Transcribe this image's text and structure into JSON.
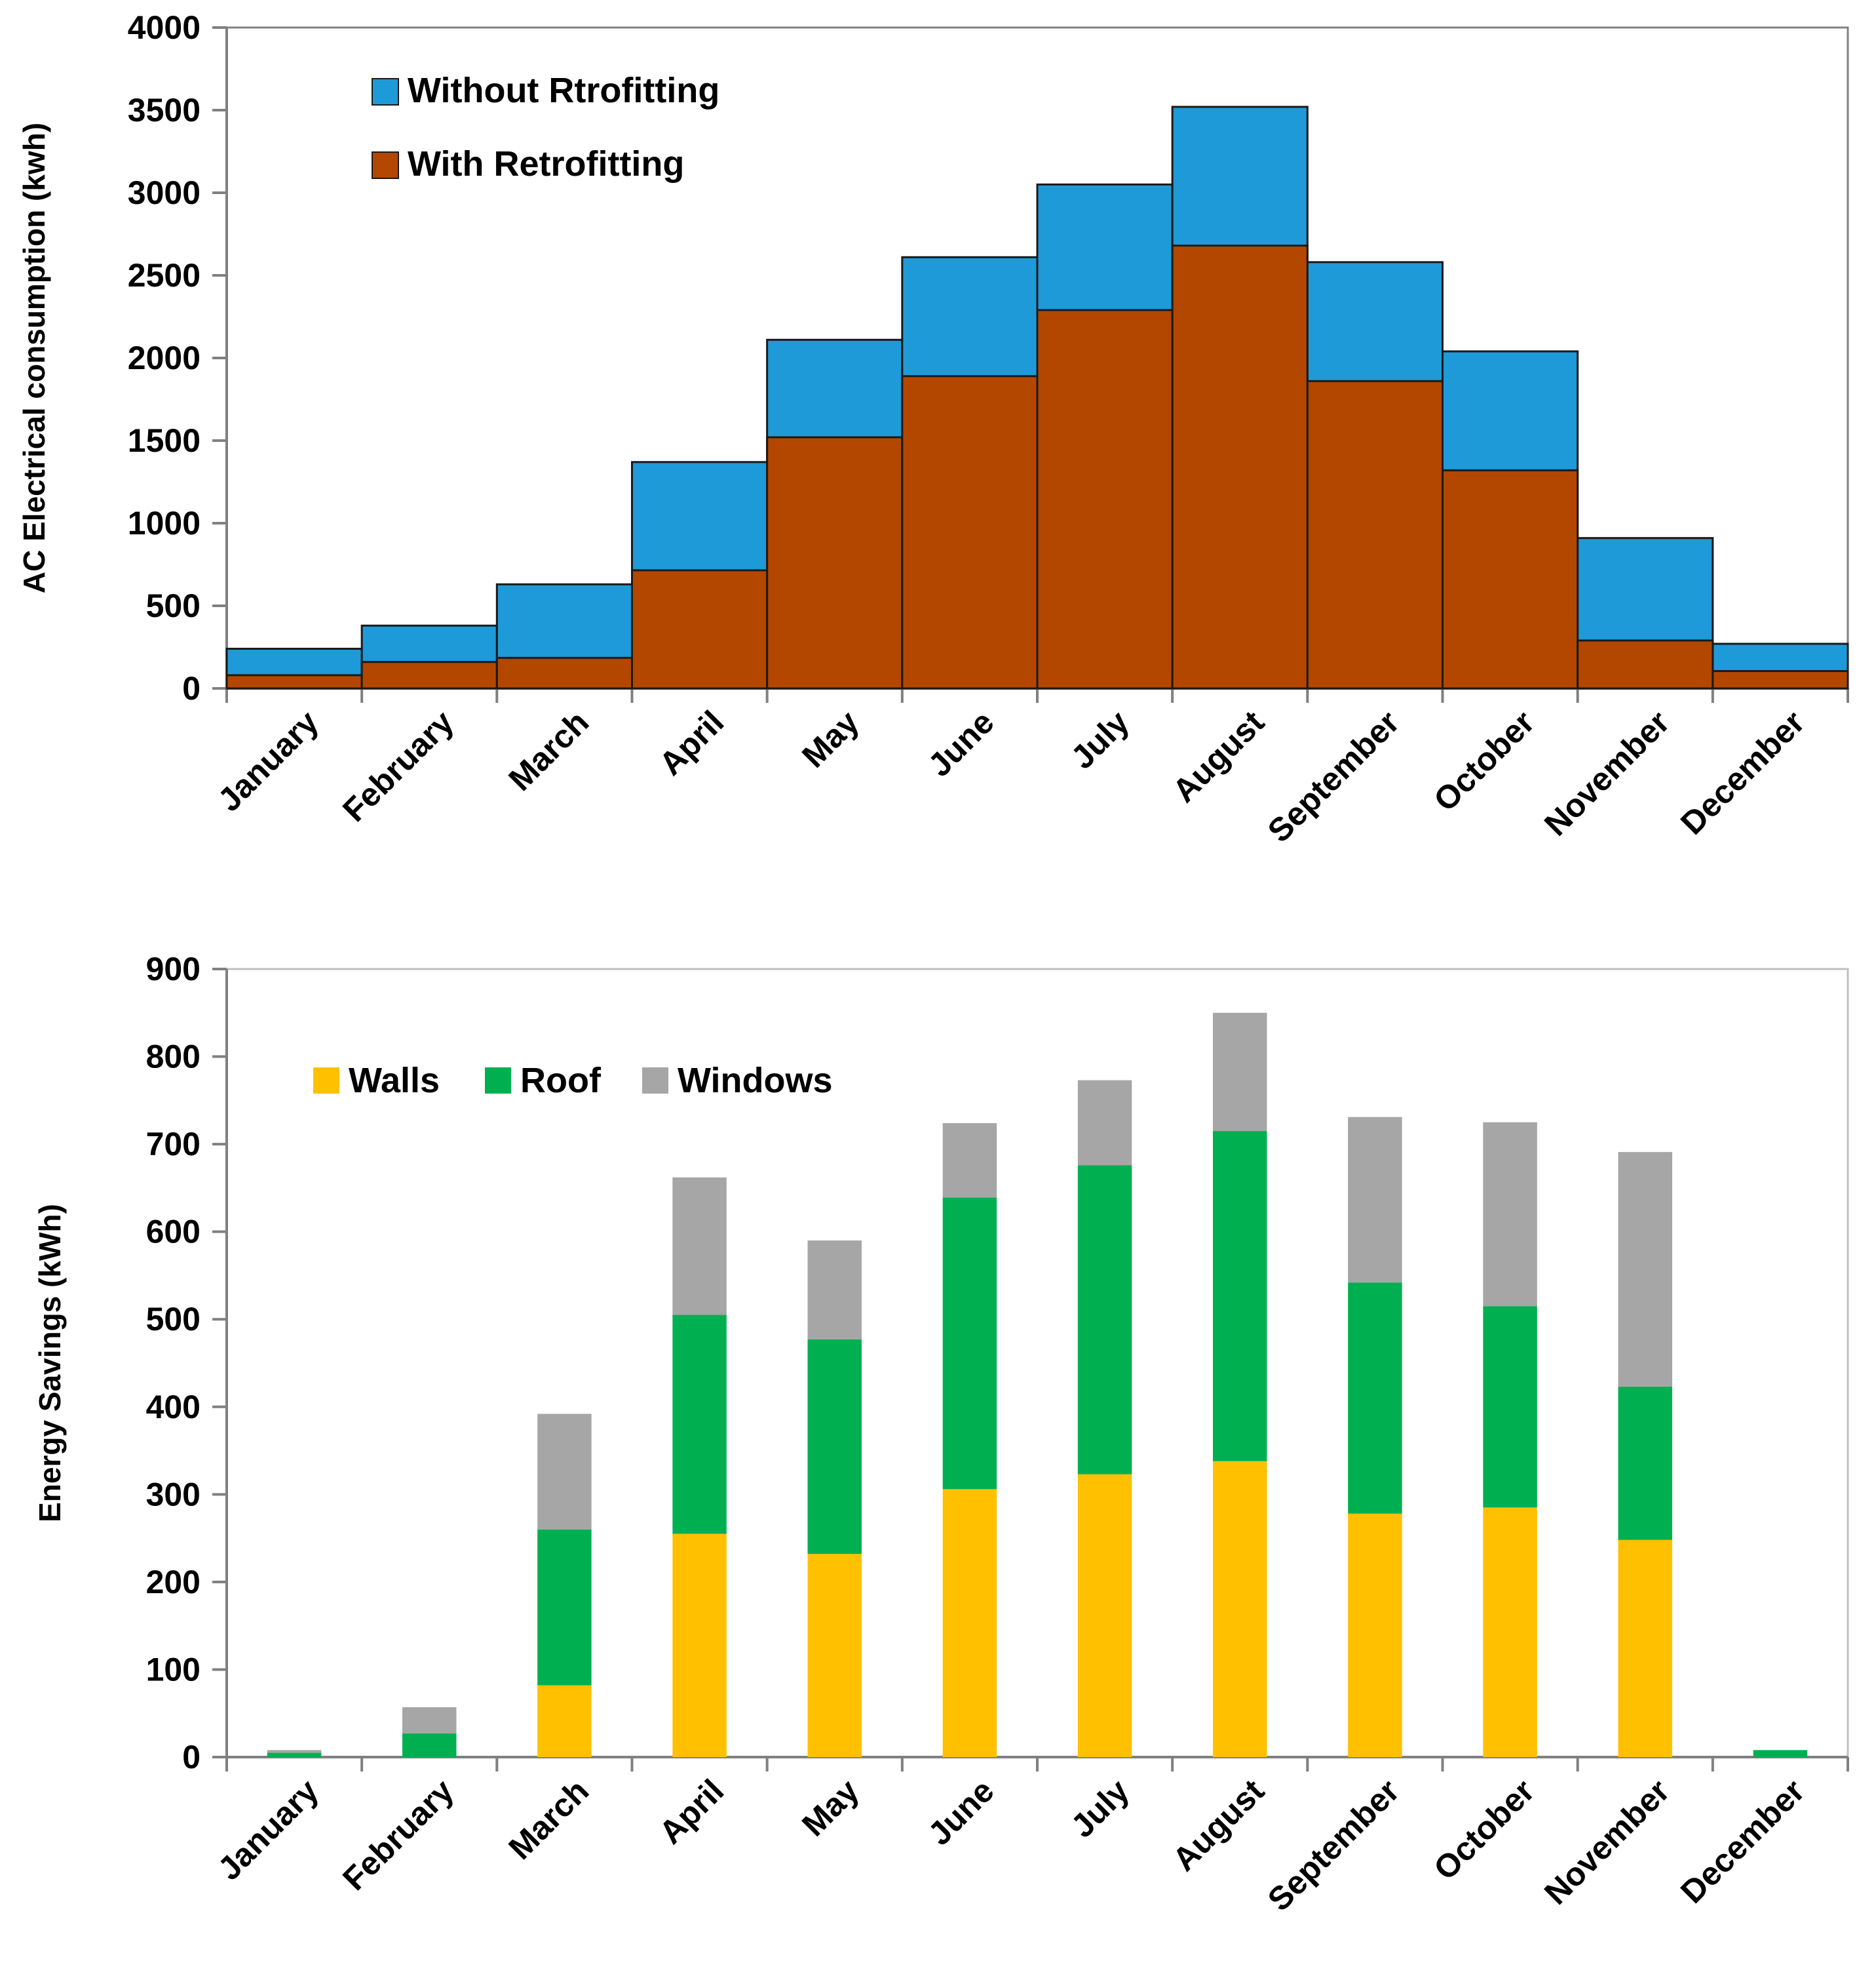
{
  "chart_data": [
    {
      "type": "bar",
      "stacking": "overlay",
      "title": "",
      "xlabel": "",
      "ylabel": "AC Electrical consumption (kwh)",
      "ylim": [
        0,
        4000
      ],
      "yticks": [
        0,
        500,
        1000,
        1500,
        2000,
        2500,
        3000,
        3500,
        4000
      ],
      "grid": false,
      "legend_position": "top-left",
      "categories": [
        "January",
        "February",
        "March",
        "April",
        "May",
        "June",
        "July",
        "August",
        "September",
        "October",
        "November",
        "December"
      ],
      "series": [
        {
          "name": "Without Rtrofitting",
          "color": "#1f9ad8",
          "values": [
            240,
            380,
            630,
            1370,
            2110,
            2610,
            3050,
            3520,
            2580,
            2040,
            910,
            270
          ]
        },
        {
          "name": "With Retrofitting",
          "color": "#b34700",
          "values": [
            80,
            160,
            185,
            715,
            1520,
            1890,
            2290,
            2680,
            1860,
            1320,
            290,
            105
          ]
        }
      ]
    },
    {
      "type": "bar",
      "stacking": "stacked",
      "title": "",
      "xlabel": "",
      "ylabel": "Energy Savings (kWh)",
      "ylim": [
        0,
        900
      ],
      "yticks": [
        0,
        100,
        200,
        300,
        400,
        500,
        600,
        700,
        800,
        900
      ],
      "grid": false,
      "legend_position": "top-left",
      "categories": [
        "January",
        "February",
        "March",
        "April",
        "May",
        "June",
        "July",
        "August",
        "September",
        "October",
        "November",
        "December"
      ],
      "series": [
        {
          "name": "Walls",
          "color": "#ffc000",
          "values": [
            0,
            0,
            82,
            255,
            232,
            306,
            323,
            338,
            278,
            285,
            248,
            0
          ]
        },
        {
          "name": "Roof",
          "color": "#00b050",
          "values": [
            5,
            27,
            178,
            250,
            245,
            333,
            353,
            377,
            264,
            230,
            175,
            8
          ]
        },
        {
          "name": "Windows",
          "color": "#a6a6a6",
          "values": [
            3,
            30,
            132,
            157,
            113,
            85,
            97,
            135,
            189,
            210,
            268,
            0
          ]
        }
      ]
    }
  ]
}
